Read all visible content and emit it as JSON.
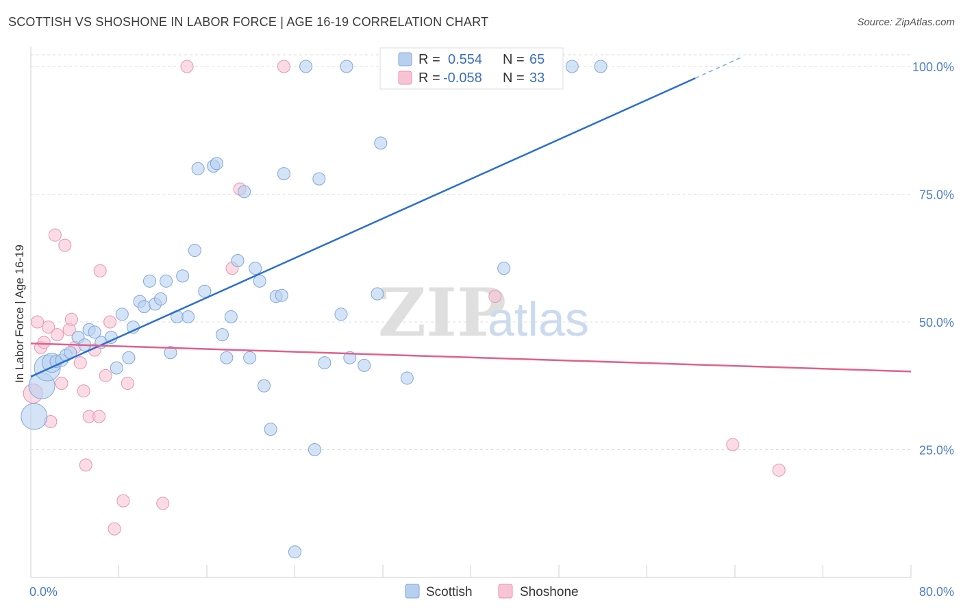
{
  "title": "SCOTTISH VS SHOSHONE IN LABOR FORCE | AGE 16-19 CORRELATION CHART",
  "source": "Source: ZipAtlas.com",
  "watermark": {
    "zip": "ZIP",
    "atlas": "atlas"
  },
  "colors": {
    "scottish_fill": "#b8d0f0",
    "scottish_stroke": "#7ea6dc",
    "scottish_line": "#2a6fcf",
    "shoshone_fill": "#f8c4d4",
    "shoshone_stroke": "#ea92b0",
    "shoshone_line": "#e0608c",
    "tick_label": "#4a7cc7",
    "grid": "#dcdcdc"
  },
  "legend": {
    "rows": [
      {
        "r_label": "R =",
        "r_value": "0.554",
        "n_label": "N =",
        "n_value": "65"
      },
      {
        "r_label": "R =",
        "r_value": "-0.058",
        "n_label": "N =",
        "n_value": "33"
      }
    ]
  },
  "bottom_legend": [
    "Scottish",
    "Shoshone"
  ],
  "chart_data": {
    "type": "scatter",
    "title": "SCOTTISH VS SHOSHONE IN LABOR FORCE | AGE 16-19 CORRELATION CHART",
    "xlabel": "",
    "ylabel": "In Labor Force | Age 16-19",
    "xlim": [
      0,
      80
    ],
    "ylim": [
      0,
      105
    ],
    "x_tick_labels": [
      "0.0%",
      "80.0%"
    ],
    "y_ticks": [
      25,
      50,
      75,
      100
    ],
    "y_tick_labels": [
      "25.0%",
      "50.0%",
      "75.0%",
      "100.0%"
    ],
    "grid": "horizontal dashed",
    "legend_position": "top-center",
    "series": [
      {
        "name": "Scottish",
        "r": 0.554,
        "n": 65,
        "trend": {
          "x": [
            0,
            60.4
          ],
          "y": [
            39.3,
            97.7
          ],
          "dashed_to": [
            64.5,
            101.7
          ]
        },
        "points": [
          {
            "x": 0.3,
            "y": 31.5,
            "s": 3
          },
          {
            "x": 1.0,
            "y": 37.5,
            "s": 3
          },
          {
            "x": 1.5,
            "y": 41.0,
            "s": 3
          },
          {
            "x": 1.9,
            "y": 42.0,
            "s": 2
          },
          {
            "x": 2.3,
            "y": 42.3,
            "s": 1
          },
          {
            "x": 2.8,
            "y": 42.5,
            "s": 1
          },
          {
            "x": 3.2,
            "y": 43.5,
            "s": 1
          },
          {
            "x": 3.6,
            "y": 44.0,
            "s": 1
          },
          {
            "x": 4.3,
            "y": 47.0,
            "s": 1
          },
          {
            "x": 4.9,
            "y": 45.5,
            "s": 1
          },
          {
            "x": 5.3,
            "y": 48.5,
            "s": 1
          },
          {
            "x": 5.8,
            "y": 48.0,
            "s": 1
          },
          {
            "x": 6.4,
            "y": 46.0,
            "s": 1
          },
          {
            "x": 7.3,
            "y": 47.0,
            "s": 1
          },
          {
            "x": 7.8,
            "y": 41.0,
            "s": 1
          },
          {
            "x": 8.3,
            "y": 51.5,
            "s": 1
          },
          {
            "x": 8.9,
            "y": 43.0,
            "s": 1
          },
          {
            "x": 9.3,
            "y": 49.0,
            "s": 1
          },
          {
            "x": 9.9,
            "y": 54.0,
            "s": 1
          },
          {
            "x": 10.3,
            "y": 53.0,
            "s": 1
          },
          {
            "x": 10.8,
            "y": 58.0,
            "s": 1
          },
          {
            "x": 11.3,
            "y": 53.5,
            "s": 1
          },
          {
            "x": 11.8,
            "y": 54.5,
            "s": 1
          },
          {
            "x": 12.3,
            "y": 58.0,
            "s": 1
          },
          {
            "x": 12.7,
            "y": 44.0,
            "s": 1
          },
          {
            "x": 13.3,
            "y": 51.0,
            "s": 1
          },
          {
            "x": 13.8,
            "y": 59.0,
            "s": 1
          },
          {
            "x": 14.3,
            "y": 51.0,
            "s": 1
          },
          {
            "x": 14.9,
            "y": 64.0,
            "s": 1
          },
          {
            "x": 15.2,
            "y": 80.0,
            "s": 1
          },
          {
            "x": 15.8,
            "y": 56.0,
            "s": 1
          },
          {
            "x": 16.6,
            "y": 80.5,
            "s": 1
          },
          {
            "x": 16.9,
            "y": 81.0,
            "s": 1
          },
          {
            "x": 17.4,
            "y": 47.5,
            "s": 1
          },
          {
            "x": 17.8,
            "y": 43.0,
            "s": 1
          },
          {
            "x": 18.2,
            "y": 51.0,
            "s": 1
          },
          {
            "x": 18.8,
            "y": 62.0,
            "s": 1
          },
          {
            "x": 19.4,
            "y": 75.5,
            "s": 1
          },
          {
            "x": 19.9,
            "y": 43.0,
            "s": 1
          },
          {
            "x": 20.4,
            "y": 60.5,
            "s": 1
          },
          {
            "x": 20.8,
            "y": 58.0,
            "s": 1
          },
          {
            "x": 21.2,
            "y": 37.5,
            "s": 1
          },
          {
            "x": 21.8,
            "y": 29.0,
            "s": 1
          },
          {
            "x": 22.3,
            "y": 55.0,
            "s": 1
          },
          {
            "x": 22.8,
            "y": 55.2,
            "s": 1
          },
          {
            "x": 23.0,
            "y": 79.0,
            "s": 1
          },
          {
            "x": 24.0,
            "y": 5.0,
            "s": 1
          },
          {
            "x": 25.0,
            "y": 100.0,
            "s": 1
          },
          {
            "x": 25.8,
            "y": 25.0,
            "s": 1
          },
          {
            "x": 26.2,
            "y": 78.0,
            "s": 1
          },
          {
            "x": 26.7,
            "y": 42.0,
            "s": 1
          },
          {
            "x": 28.2,
            "y": 51.5,
            "s": 1
          },
          {
            "x": 29.0,
            "y": 43.0,
            "s": 1
          },
          {
            "x": 28.7,
            "y": 100.0,
            "s": 1
          },
          {
            "x": 30.3,
            "y": 41.5,
            "s": 1
          },
          {
            "x": 31.5,
            "y": 55.5,
            "s": 1
          },
          {
            "x": 31.8,
            "y": 85.0,
            "s": 1
          },
          {
            "x": 34.2,
            "y": 39.0,
            "s": 1
          },
          {
            "x": 38.0,
            "y": 100.0,
            "s": 1
          },
          {
            "x": 40.3,
            "y": 100.0,
            "s": 1
          },
          {
            "x": 43.0,
            "y": 60.5,
            "s": 1
          },
          {
            "x": 49.2,
            "y": 100.0,
            "s": 1
          },
          {
            "x": 51.8,
            "y": 100.0,
            "s": 1
          },
          {
            "x": 35.5,
            "y": 100.0,
            "s": 1
          },
          {
            "x": 36.2,
            "y": 100.0,
            "s": 1
          }
        ]
      },
      {
        "name": "Shoshone",
        "r": -0.058,
        "n": 33,
        "trend": {
          "x": [
            0,
            80
          ],
          "y": [
            45.8,
            40.3
          ]
        },
        "points": [
          {
            "x": 0.2,
            "y": 36.0,
            "s": 2
          },
          {
            "x": 0.6,
            "y": 50.0,
            "s": 1
          },
          {
            "x": 0.9,
            "y": 45.0,
            "s": 1
          },
          {
            "x": 1.2,
            "y": 46.0,
            "s": 1
          },
          {
            "x": 1.6,
            "y": 49.0,
            "s": 1
          },
          {
            "x": 1.8,
            "y": 30.5,
            "s": 1
          },
          {
            "x": 2.2,
            "y": 67.0,
            "s": 1
          },
          {
            "x": 2.4,
            "y": 47.5,
            "s": 1
          },
          {
            "x": 2.8,
            "y": 38.0,
            "s": 1
          },
          {
            "x": 3.1,
            "y": 65.0,
            "s": 1
          },
          {
            "x": 3.5,
            "y": 48.5,
            "s": 1
          },
          {
            "x": 3.7,
            "y": 50.5,
            "s": 1
          },
          {
            "x": 4.0,
            "y": 45.0,
            "s": 1
          },
          {
            "x": 4.5,
            "y": 42.0,
            "s": 1
          },
          {
            "x": 4.8,
            "y": 36.5,
            "s": 1
          },
          {
            "x": 5.0,
            "y": 22.0,
            "s": 1
          },
          {
            "x": 5.3,
            "y": 31.5,
            "s": 1
          },
          {
            "x": 5.8,
            "y": 44.5,
            "s": 1
          },
          {
            "x": 6.2,
            "y": 31.5,
            "s": 1
          },
          {
            "x": 6.3,
            "y": 60.0,
            "s": 1
          },
          {
            "x": 6.8,
            "y": 39.5,
            "s": 1
          },
          {
            "x": 7.2,
            "y": 50.0,
            "s": 1
          },
          {
            "x": 7.6,
            "y": 9.5,
            "s": 1
          },
          {
            "x": 8.4,
            "y": 15.0,
            "s": 1
          },
          {
            "x": 8.8,
            "y": 38.0,
            "s": 1
          },
          {
            "x": 12.0,
            "y": 14.5,
            "s": 1
          },
          {
            "x": 14.2,
            "y": 100.0,
            "s": 1
          },
          {
            "x": 18.3,
            "y": 60.5,
            "s": 1
          },
          {
            "x": 19.0,
            "y": 76.0,
            "s": 1
          },
          {
            "x": 23.0,
            "y": 100.0,
            "s": 1
          },
          {
            "x": 42.2,
            "y": 55.0,
            "s": 1
          },
          {
            "x": 63.8,
            "y": 26.0,
            "s": 1
          },
          {
            "x": 68.0,
            "y": 21.0,
            "s": 1
          }
        ]
      }
    ]
  }
}
